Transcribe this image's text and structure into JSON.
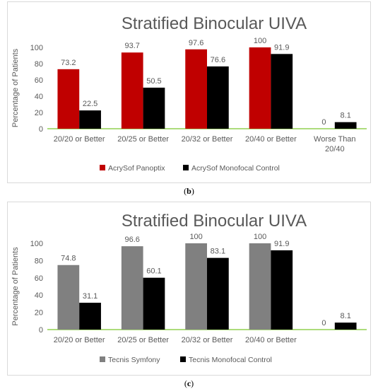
{
  "chart_data": [
    {
      "type": "bar",
      "title": "Stratified Binocular UIVA",
      "ylabel": "Percentage of Patients",
      "xlabel": "",
      "ylim": [
        0,
        100
      ],
      "yticks": [
        "0",
        "20",
        "40",
        "60",
        "80",
        "100"
      ],
      "categories": [
        [
          "20/20 or Better"
        ],
        [
          "20/25 or Better"
        ],
        [
          "20/32 or Better"
        ],
        [
          "20/40 or Better"
        ],
        [
          "Worse Than",
          "20/40"
        ]
      ],
      "series": [
        {
          "name": "AcrySof Panoptix",
          "color": "#c00000",
          "values": [
            73.2,
            93.7,
            97.6,
            100,
            0
          ],
          "labels": [
            "73.2",
            "93.7",
            "97.6",
            "100",
            "0"
          ]
        },
        {
          "name": "AcrySof Monofocal Control",
          "color": "#000000",
          "values": [
            22.5,
            50.5,
            76.6,
            91.9,
            8.1
          ],
          "labels": [
            "22.5",
            "50.5",
            "76.6",
            "91.9",
            "8.1"
          ]
        }
      ],
      "legend": "bottom",
      "grid": false
    },
    {
      "type": "bar",
      "title": "Stratified Binocular UIVA",
      "ylabel": "Percentage of Patients",
      "xlabel": "",
      "ylim": [
        0,
        100
      ],
      "yticks": [
        "0",
        "20",
        "40",
        "60",
        "80",
        "100"
      ],
      "categories": [
        [
          "20/20 or Better"
        ],
        [
          "20/25 or Better"
        ],
        [
          "20/32 or Better"
        ],
        [
          "20/40 or Better"
        ],
        [
          ""
        ]
      ],
      "series": [
        {
          "name": "Tecnis Symfony",
          "color": "#808080",
          "values": [
            74.8,
            96.6,
            100,
            100,
            0
          ],
          "labels": [
            "74.8",
            "96.6",
            "100",
            "100",
            "0"
          ]
        },
        {
          "name": "Tecnis Monofocal Control",
          "color": "#000000",
          "values": [
            31.1,
            60.1,
            83.1,
            91.9,
            8.1
          ],
          "labels": [
            "31.1",
            "60.1",
            "83.1",
            "91.9",
            "8.1"
          ]
        }
      ],
      "legend": "bottom",
      "grid": false
    }
  ],
  "captions": {
    "b": {
      "open": "(",
      "letter": "b",
      "close": ")"
    },
    "c": {
      "open": "(",
      "letter": "c",
      "close": ")"
    }
  },
  "colors": {
    "axis": "#92d050",
    "text": "#595959",
    "title": "#595959"
  }
}
